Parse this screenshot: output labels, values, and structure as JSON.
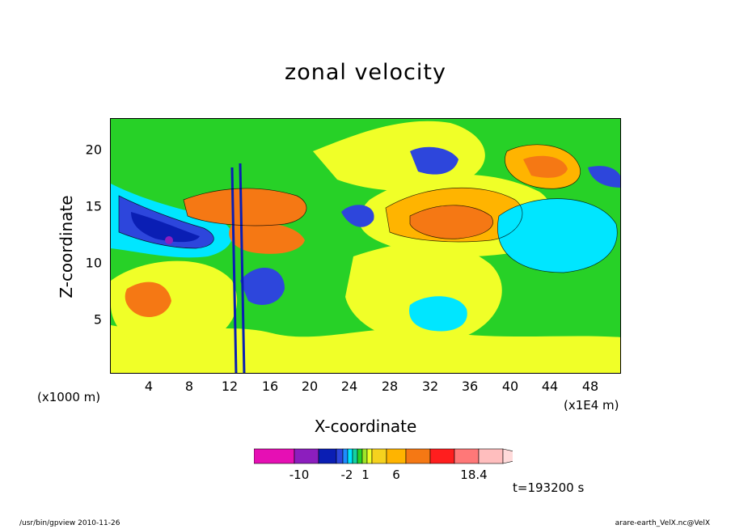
{
  "chart_data": {
    "type": "heatmap",
    "title": "zonal velocity",
    "xlabel": "X-coordinate",
    "ylabel": "Z-coordinate",
    "x_unit": "(x1E4 m)",
    "y_unit": "(x1000 m)",
    "x_ticks": [
      "4",
      "8",
      "12",
      "16",
      "20",
      "24",
      "28",
      "32",
      "36",
      "40",
      "44",
      "48"
    ],
    "y_ticks": [
      "5",
      "10",
      "15",
      "20"
    ],
    "xlim": [
      0,
      51
    ],
    "ylim": [
      0,
      22.5
    ],
    "colorbar": {
      "labels": [
        "-10",
        "-2",
        "1",
        "6",
        "18.4"
      ],
      "colors": [
        "#e60fb4",
        "#8c1ebe",
        "#0a1eb4",
        "#2d46dc",
        "#1e8cff",
        "#00e6ff",
        "#14d2a0",
        "#28d228",
        "#a0e628",
        "#f0ff28",
        "#f5d21e",
        "#ffb400",
        "#f57814",
        "#ff1e1e",
        "#ff7878",
        "#ffbebe"
      ]
    },
    "features": [
      {
        "x": 32,
        "y": 12.5,
        "value": 6
      },
      {
        "x": 44,
        "y": 18,
        "value": 6
      },
      {
        "x": 6,
        "y": 12,
        "value": -10
      },
      {
        "x": 43,
        "y": 12,
        "value": -2
      }
    ]
  },
  "annotations": {
    "time": "t=193200 s",
    "footer_left": "/usr/bin/gpview   2010-11-26",
    "footer_right": "arare-earth_VelX.nc@VelX"
  }
}
